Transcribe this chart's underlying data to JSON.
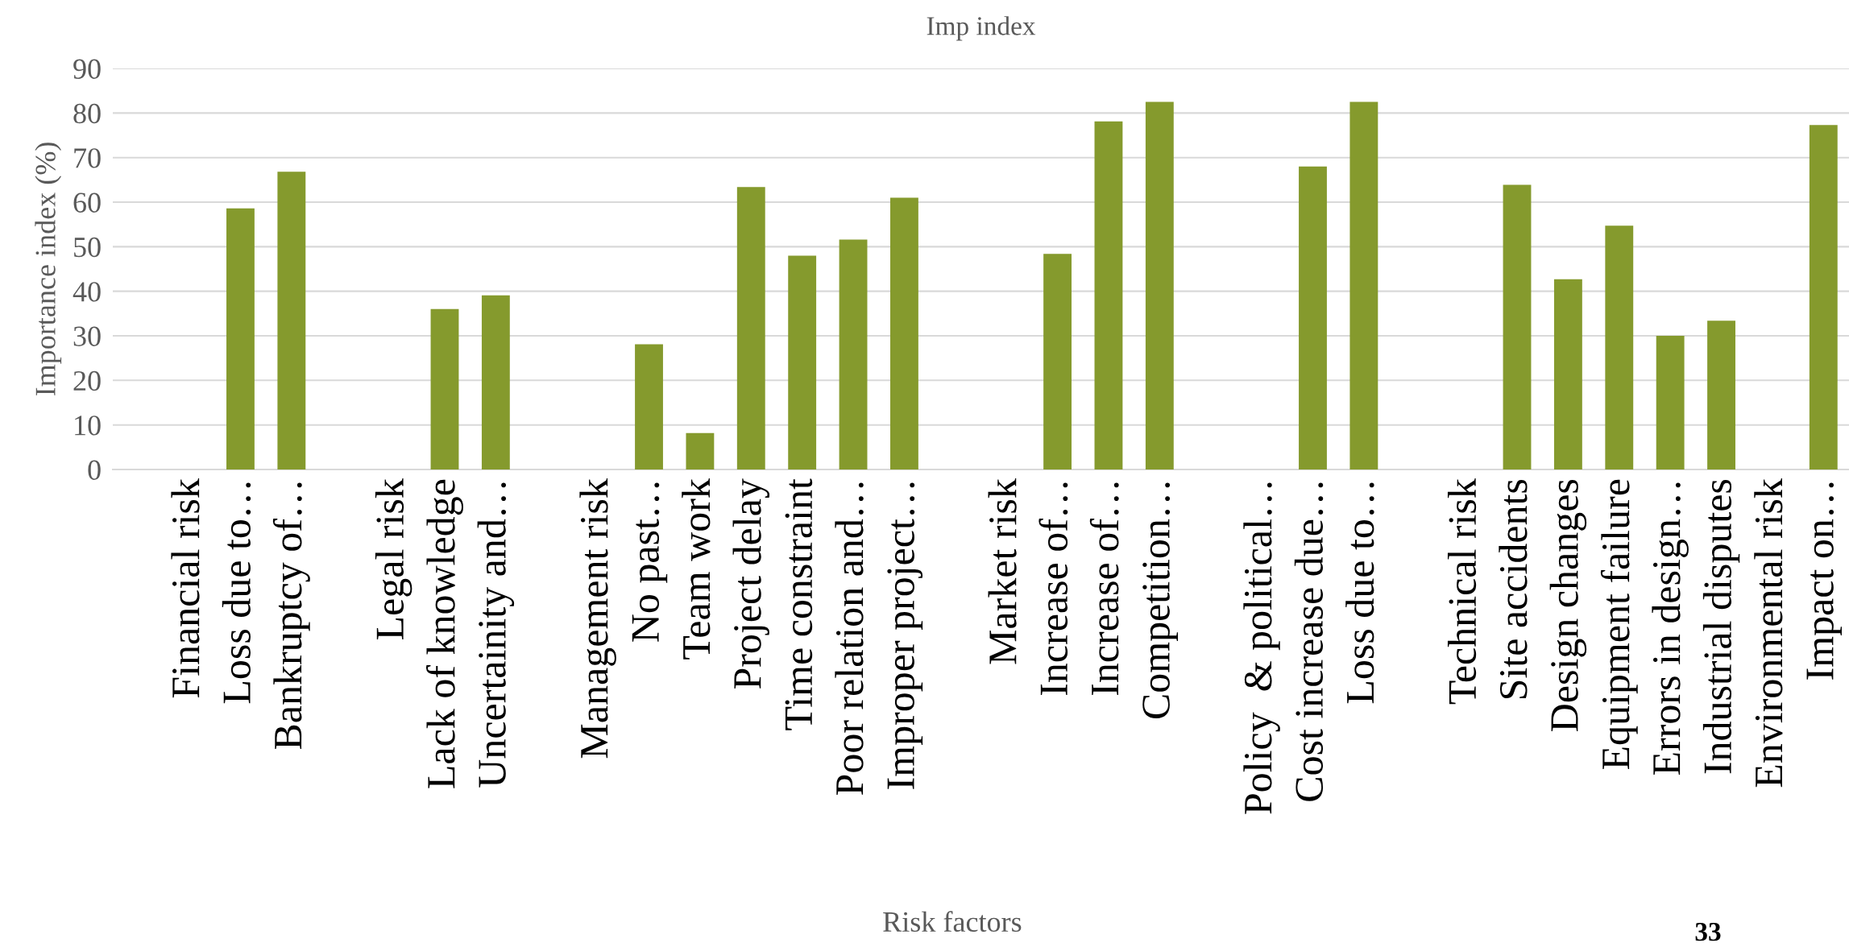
{
  "chart_data": {
    "type": "bar",
    "title": "Imp index",
    "xlabel": "Risk factors",
    "ylabel": "Importance index (%)",
    "categories": [
      null,
      "Financial risk",
      "Loss due to…",
      "Bankruptcy of…",
      null,
      "Legal risk",
      "Lack of knowledge",
      "Uncertainity and…",
      null,
      "Management risk",
      "No past…",
      "Team work",
      "Project delay",
      "Time constraint",
      "Poor relation and…",
      "Improper project…",
      null,
      "Market risk",
      "Increase of…",
      "Increase of…",
      "Competition…",
      null,
      "Policy  & political…",
      "Cost increase due…",
      "Loss due to…",
      null,
      "Technical risk",
      "Site accidents",
      "Design changes",
      "Equipment failure",
      "Errors in design…",
      "Industrial disputes",
      "Environmental risk",
      "Impact on…"
    ],
    "values": [
      null,
      null,
      58.6,
      66.8,
      null,
      null,
      36.0,
      39.1,
      null,
      null,
      28.1,
      8.2,
      63.4,
      48.0,
      51.6,
      61.0,
      null,
      null,
      48.4,
      78.1,
      82.5,
      null,
      null,
      68.0,
      82.5,
      null,
      null,
      63.9,
      42.7,
      54.7,
      30.0,
      33.4,
      null,
      77.3
    ],
    "color": "#859a2d",
    "ylim": [
      0,
      90
    ],
    "yticks": [
      0,
      10,
      20,
      30,
      40,
      50,
      60,
      70,
      80,
      90
    ],
    "grid": "y",
    "annotations": [
      "33"
    ]
  }
}
